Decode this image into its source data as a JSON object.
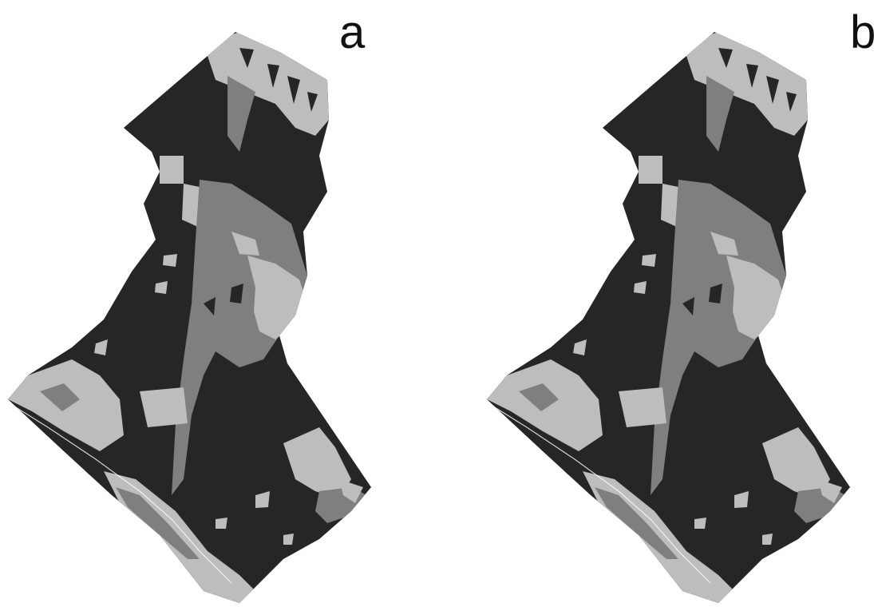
{
  "figure": {
    "panels": [
      {
        "id": "a",
        "label": "a"
      },
      {
        "id": "b",
        "label": "b"
      }
    ],
    "colors": {
      "dark_class": "#262626",
      "medium_class": "#7f7f7f",
      "light_class": "#bdbdbd",
      "background": "#ffffff"
    }
  }
}
